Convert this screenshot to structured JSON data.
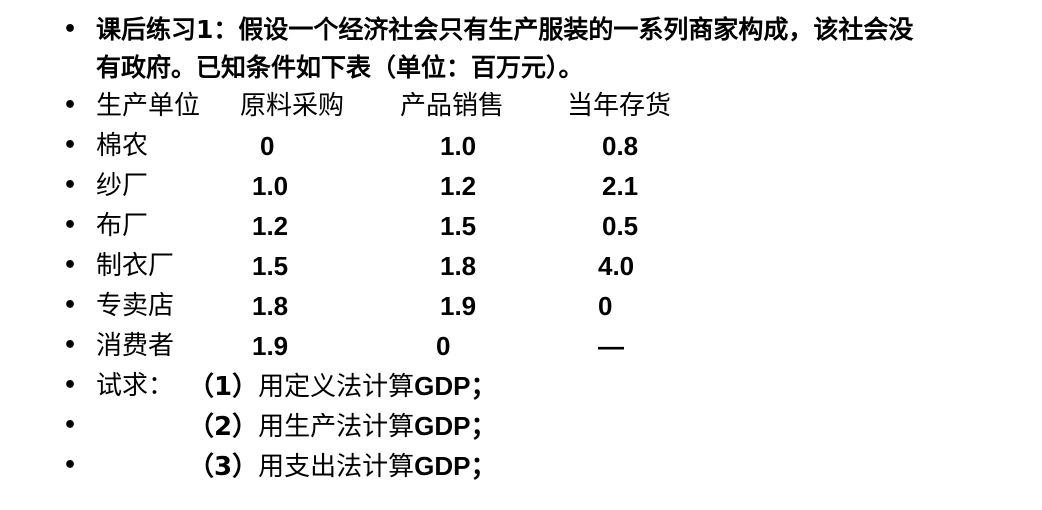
{
  "intro": {
    "line1": "课后练习1：假设一个经济社会只有生产服装的一系列商家构成，该社会没",
    "line2": "有政府。已知条件如下表（单位：百万元）。"
  },
  "table": {
    "headers": [
      "生产单位",
      "原料采购",
      "产品销售",
      "当年存货"
    ],
    "rows": [
      [
        "棉农",
        "0",
        "1.0",
        "0.8"
      ],
      [
        "纱厂",
        "1.0",
        "1.2",
        "2.1"
      ],
      [
        "布厂",
        "1.2",
        "1.5",
        "0.5"
      ],
      [
        "制衣厂",
        "1.5",
        "1.8",
        "4.0"
      ],
      [
        "专卖店",
        "1.8",
        "1.9",
        "0"
      ],
      [
        "消费者",
        "1.9",
        "0",
        "—"
      ]
    ]
  },
  "questions": {
    "prefix": "试求：",
    "items": [
      {
        "num": "（1）",
        "text": "用定义法计算",
        "abbr": "GDP",
        "tail": "；"
      },
      {
        "num": "（2）",
        "text": "用生产法计算",
        "abbr": "GDP",
        "tail": "；"
      },
      {
        "num": "（3）",
        "text": "用支出法计算",
        "abbr": "GDP",
        "tail": "；"
      }
    ]
  }
}
